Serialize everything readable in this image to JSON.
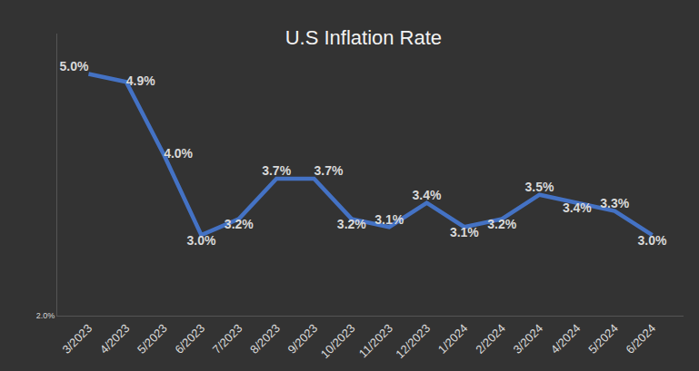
{
  "chart_data": {
    "type": "line",
    "title": "U.S Inflation Rate",
    "categories": [
      "3/2023",
      "4/2023",
      "5/2023",
      "6/2023",
      "7/2023",
      "8/2023",
      "9/2023",
      "10/2023",
      "11/2023",
      "12/2023",
      "1/2024",
      "2/2024",
      "3/2024",
      "4/2024",
      "5/2024",
      "6/2024"
    ],
    "values": [
      5.0,
      4.9,
      4.0,
      3.0,
      3.2,
      3.7,
      3.7,
      3.2,
      3.1,
      3.4,
      3.1,
      3.2,
      3.5,
      3.4,
      3.3,
      3.0
    ],
    "value_labels": [
      "5.0%",
      "4.9%",
      "4.0%",
      "3.0%",
      "3.2%",
      "3.7%",
      "3.7%",
      "3.2%",
      "3.1%",
      "3.4%",
      "3.1%",
      "3.2%",
      "3.5%",
      "3.4%",
      "3.3%",
      "3.0%"
    ],
    "color": "#4472c4",
    "ylim": [
      2,
      5.5
    ],
    "yticks": [
      {
        "value": 2,
        "label": "2.0%"
      }
    ],
    "grid": false,
    "data_labels": true
  }
}
